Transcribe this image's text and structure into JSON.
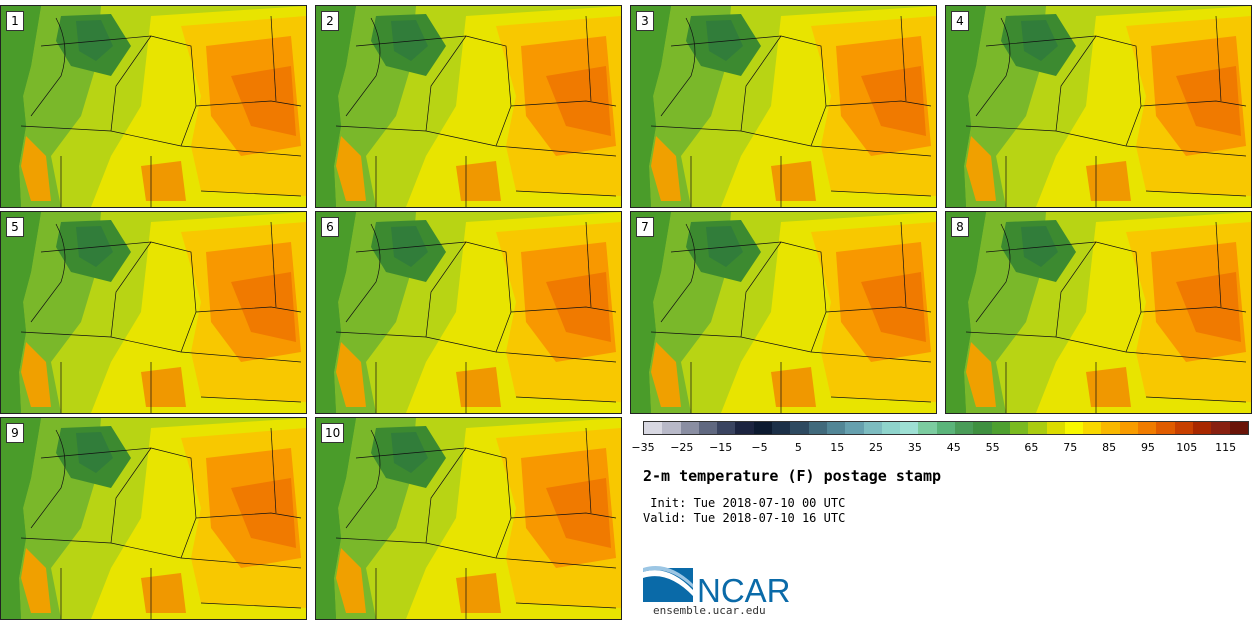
{
  "panels": [
    {
      "label": "1"
    },
    {
      "label": "2"
    },
    {
      "label": "3"
    },
    {
      "label": "4"
    },
    {
      "label": "5"
    },
    {
      "label": "6"
    },
    {
      "label": "7"
    },
    {
      "label": "8"
    },
    {
      "label": "9"
    },
    {
      "label": "10"
    }
  ],
  "colorbar": {
    "colors": [
      "#d8d8e2",
      "#b8b9c8",
      "#8a8ea2",
      "#606880",
      "#3a4460",
      "#1c2440",
      "#0c1a30",
      "#1c3048",
      "#2e4a60",
      "#416a7c",
      "#528696",
      "#66a0ae",
      "#7dbcc0",
      "#8fd4cc",
      "#9ee0d4",
      "#7ccca0",
      "#5bb47a",
      "#4a9c58",
      "#3f9040",
      "#4ea030",
      "#7aba20",
      "#aacc10",
      "#dcdc00",
      "#f8f800",
      "#f8d800",
      "#f8b800",
      "#f89c00",
      "#f07c00",
      "#e05c00",
      "#c84000",
      "#a82800",
      "#882010",
      "#6a1408"
    ],
    "ticks": [
      "−35",
      "−25",
      "−15",
      "−5",
      "5",
      "15",
      "25",
      "35",
      "45",
      "55",
      "65",
      "75",
      "85",
      "95",
      "105",
      "115"
    ]
  },
  "title": "2-m temperature (F) postage stamp",
  "init": " Init: Tue 2018-07-10 00 UTC",
  "valid": "Valid: Tue 2018-07-10 16 UTC",
  "logo": {
    "text": "NCAR",
    "color": "#0a6aa8"
  },
  "url": "ensemble.ucar.edu"
}
